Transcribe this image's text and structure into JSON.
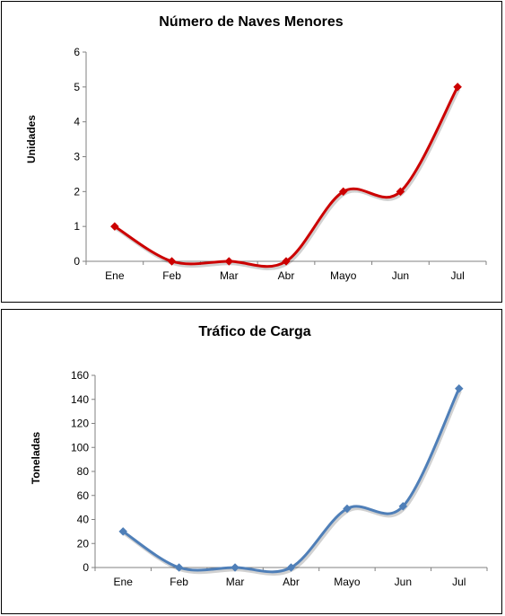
{
  "chart_data": [
    {
      "type": "line",
      "title": "Número de Naves Menores",
      "xlabel": "",
      "ylabel": "Unidades",
      "categories": [
        "Ene",
        "Feb",
        "Mar",
        "Abr",
        "Mayo",
        "Jun",
        "Jul"
      ],
      "values": [
        1,
        0,
        0,
        0,
        2,
        2,
        5
      ],
      "ylim": [
        0,
        6
      ],
      "yticks": [
        "0",
        "1",
        "2",
        "3",
        "4",
        "5",
        "6"
      ],
      "color": "#cc0000",
      "marker": "diamond",
      "smooth": true,
      "grid": false,
      "legend": "none"
    },
    {
      "type": "line",
      "title": "Tráfico de Carga",
      "xlabel": "",
      "ylabel": "Toneladas",
      "categories": [
        "Ene",
        "Feb",
        "Mar",
        "Abr",
        "Mayo",
        "Jun",
        "Jul"
      ],
      "values": [
        30,
        0,
        0,
        0,
        49,
        51,
        149
      ],
      "ylim": [
        0,
        160
      ],
      "yticks": [
        "0",
        "20",
        "40",
        "60",
        "80",
        "100",
        "120",
        "140",
        "160"
      ],
      "color": "#4f7fb8",
      "marker": "diamond",
      "smooth": true,
      "grid": false,
      "legend": "none"
    }
  ]
}
